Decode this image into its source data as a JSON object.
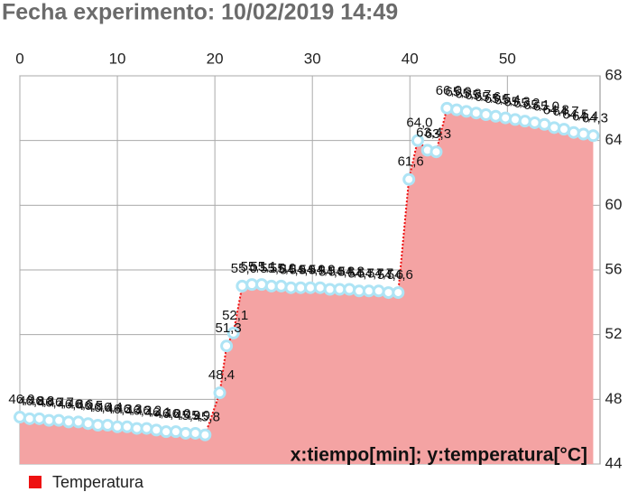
{
  "chart_data": {
    "type": "area",
    "title": "Fecha experimento: 10/02/2019 14:49",
    "annotation": "x:tiempo[min]; y:temperatura[°C]",
    "x": [
      0,
      1,
      2,
      3,
      4,
      5,
      6,
      7,
      8,
      9,
      10,
      11,
      12,
      13,
      14,
      15,
      16,
      17,
      18,
      19,
      20.5,
      21.2,
      21.9,
      22.8,
      23.8,
      24.8,
      25.8,
      26.8,
      27.8,
      28.8,
      29.8,
      30.8,
      31.8,
      32.8,
      33.8,
      34.8,
      35.8,
      36.8,
      37.8,
      38.8,
      39.9,
      40.8,
      41.8,
      42.7,
      43.8,
      44.8,
      45.8,
      46.8,
      47.8,
      48.8,
      49.8,
      50.8,
      51.8,
      52.8,
      53.8,
      54.8,
      55.8,
      56.8,
      57.8,
      58.8
    ],
    "series": [
      {
        "name": "Temperatura",
        "color": "#ee1111",
        "fill_color": "#f4a3a3",
        "marker_color": "#aee4f5",
        "values": [
          46.9,
          46.8,
          46.8,
          46.7,
          46.7,
          46.6,
          46.6,
          46.5,
          46.4,
          46.4,
          46.3,
          46.3,
          46.2,
          46.2,
          46.1,
          46.0,
          46.0,
          45.9,
          45.9,
          45.8,
          48.4,
          51.3,
          52.1,
          55.0,
          55.1,
          55.1,
          55.0,
          55.0,
          54.9,
          54.9,
          54.9,
          54.9,
          54.8,
          54.8,
          54.8,
          54.7,
          54.7,
          54.7,
          54.6,
          54.6,
          61.6,
          64.0,
          63.4,
          63.3,
          66.0,
          65.9,
          65.8,
          65.7,
          65.6,
          65.5,
          65.4,
          65.3,
          65.2,
          65.1,
          65.0,
          64.8,
          64.7,
          64.5,
          64.4,
          64.3
        ],
        "value_labels": [
          "46,9",
          "46,8",
          "46,8",
          "46,7",
          "46,7",
          "46,6",
          "46,6",
          "46,5",
          "46,4",
          "46,4",
          "46,3",
          "46,3",
          "46,2",
          "46,2",
          "46,1",
          "46,0",
          "46,0",
          "45,9",
          "45,9",
          "45,8",
          "48,4",
          "51,3",
          "52,1",
          "55,0",
          "55,1",
          "55,1",
          "55,0",
          "55,0",
          "54,9",
          "54,9",
          "54,9",
          "54,9",
          "54,8",
          "54,8",
          "54,8",
          "54,7",
          "54,7",
          "54,7",
          "54,6",
          "54,6",
          "61,6",
          "64,0",
          "63,4",
          "63,3",
          "66,0",
          "65,9",
          "65,8",
          "65,7",
          "65,6",
          "65,5",
          "65,4",
          "65,3",
          "65,2",
          "65,1",
          "65,0",
          "64,8",
          "64,7",
          "64,5",
          "64,4",
          "64,3"
        ]
      }
    ],
    "xlim": [
      0,
      59.5
    ],
    "xticks": [
      0,
      10,
      20,
      30,
      40,
      50
    ],
    "ylim": [
      44,
      68
    ],
    "yticks": [
      44,
      48,
      52,
      56,
      60,
      64,
      68
    ],
    "grid": true
  }
}
